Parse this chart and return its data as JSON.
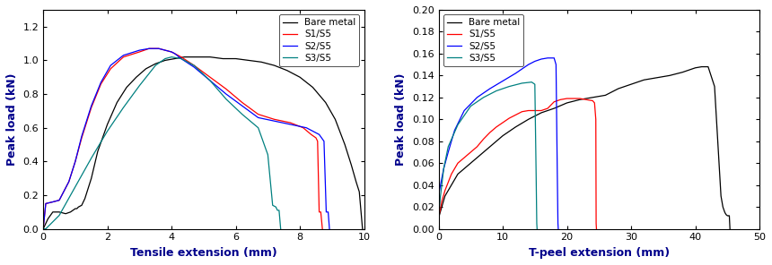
{
  "chart_a": {
    "xlabel": "Tensile extension (mm)",
    "ylabel": "Peak load (kN)",
    "xlim": [
      0,
      10
    ],
    "ylim": [
      0,
      1.3
    ],
    "yticks": [
      0.0,
      0.2,
      0.4,
      0.6,
      0.8,
      1.0,
      1.2
    ],
    "xticks": [
      0,
      2,
      4,
      6,
      8,
      10
    ],
    "label_color": "#00008B",
    "series": [
      {
        "label": "Bare metal",
        "color": "#000000",
        "x": [
          0,
          0.15,
          0.3,
          0.5,
          0.7,
          0.85,
          1.0,
          1.05,
          1.1,
          1.2,
          1.3,
          1.5,
          1.7,
          2.0,
          2.3,
          2.6,
          2.9,
          3.2,
          3.5,
          3.8,
          4.1,
          4.4,
          4.8,
          5.2,
          5.6,
          6.0,
          6.4,
          6.8,
          7.2,
          7.6,
          8.0,
          8.4,
          8.8,
          9.1,
          9.4,
          9.6,
          9.75,
          9.85,
          9.95
        ],
        "y": [
          0,
          0.06,
          0.1,
          0.1,
          0.09,
          0.1,
          0.12,
          0.12,
          0.13,
          0.14,
          0.18,
          0.3,
          0.46,
          0.62,
          0.75,
          0.84,
          0.9,
          0.95,
          0.98,
          1.0,
          1.01,
          1.02,
          1.02,
          1.02,
          1.01,
          1.01,
          1.0,
          0.99,
          0.97,
          0.94,
          0.9,
          0.84,
          0.75,
          0.65,
          0.5,
          0.38,
          0.28,
          0.22,
          0.0
        ]
      },
      {
        "label": "S1/S5",
        "color": "#ff0000",
        "x": [
          0,
          0.08,
          0.3,
          0.5,
          0.8,
          1.0,
          1.2,
          1.5,
          1.8,
          2.1,
          2.5,
          3.0,
          3.3,
          3.6,
          3.8,
          4.0,
          4.3,
          4.7,
          5.2,
          5.7,
          6.2,
          6.7,
          7.2,
          7.7,
          8.1,
          8.35,
          8.5,
          8.55,
          8.6,
          8.65,
          8.7
        ],
        "y": [
          0,
          0.15,
          0.16,
          0.17,
          0.28,
          0.4,
          0.54,
          0.72,
          0.86,
          0.95,
          1.02,
          1.05,
          1.07,
          1.07,
          1.06,
          1.05,
          1.02,
          0.97,
          0.9,
          0.83,
          0.75,
          0.68,
          0.65,
          0.63,
          0.6,
          0.56,
          0.54,
          0.52,
          0.1,
          0.1,
          0.0
        ]
      },
      {
        "label": "S2/S5",
        "color": "#0000ff",
        "x": [
          0,
          0.08,
          0.3,
          0.5,
          0.8,
          1.0,
          1.2,
          1.5,
          1.8,
          2.1,
          2.5,
          3.0,
          3.3,
          3.6,
          3.8,
          4.0,
          4.1,
          4.3,
          4.7,
          5.2,
          5.7,
          6.2,
          6.7,
          7.2,
          7.7,
          8.2,
          8.6,
          8.75,
          8.82,
          8.88,
          8.92
        ],
        "y": [
          0,
          0.15,
          0.16,
          0.17,
          0.28,
          0.4,
          0.55,
          0.73,
          0.87,
          0.97,
          1.03,
          1.06,
          1.07,
          1.07,
          1.06,
          1.05,
          1.04,
          1.01,
          0.96,
          0.88,
          0.8,
          0.73,
          0.66,
          0.64,
          0.62,
          0.6,
          0.56,
          0.52,
          0.1,
          0.1,
          0.0
        ]
      },
      {
        "label": "S3/S5",
        "color": "#008080",
        "x": [
          0,
          0.08,
          0.5,
          1.0,
          1.5,
          2.0,
          2.5,
          3.0,
          3.5,
          3.8,
          4.0,
          4.3,
          4.7,
          5.2,
          5.7,
          6.2,
          6.7,
          7.0,
          7.15,
          7.25,
          7.3,
          7.35,
          7.4
        ],
        "y": [
          0,
          0.0,
          0.08,
          0.25,
          0.42,
          0.58,
          0.72,
          0.85,
          0.97,
          1.01,
          1.02,
          1.01,
          0.97,
          0.88,
          0.77,
          0.68,
          0.6,
          0.44,
          0.14,
          0.13,
          0.11,
          0.11,
          0.0
        ]
      }
    ],
    "legend_loc": "upper right"
  },
  "chart_b": {
    "xlabel": "T-peel extension (mm)",
    "ylabel": "Peak load (kN)",
    "xlim": [
      0,
      50
    ],
    "ylim": [
      0,
      0.2
    ],
    "yticks": [
      0.0,
      0.02,
      0.04,
      0.06,
      0.08,
      0.1,
      0.12,
      0.14,
      0.16,
      0.18,
      0.2
    ],
    "xticks": [
      0,
      10,
      20,
      30,
      40,
      50
    ],
    "label_color": "#00008B",
    "series": [
      {
        "label": "Bare metal",
        "color": "#000000",
        "x": [
          0,
          0.5,
          1,
          2,
          3,
          4,
          5,
          6,
          7,
          8,
          9,
          10,
          12,
          14,
          16,
          18,
          20,
          22,
          24,
          26,
          28,
          30,
          32,
          34,
          36,
          38,
          40,
          41,
          42,
          43,
          43.5,
          44,
          44.3,
          44.6,
          44.8,
          45.0,
          45.2,
          45.3,
          45.4
        ],
        "y": [
          0.01,
          0.02,
          0.03,
          0.04,
          0.05,
          0.055,
          0.06,
          0.065,
          0.07,
          0.075,
          0.08,
          0.085,
          0.093,
          0.1,
          0.106,
          0.11,
          0.115,
          0.118,
          0.12,
          0.122,
          0.128,
          0.132,
          0.136,
          0.138,
          0.14,
          0.143,
          0.147,
          0.148,
          0.148,
          0.13,
          0.08,
          0.03,
          0.02,
          0.015,
          0.013,
          0.012,
          0.012,
          0.012,
          0.0
        ]
      },
      {
        "label": "S1/S5",
        "color": "#ff0000",
        "x": [
          0,
          0.5,
          1,
          2,
          3,
          4,
          5,
          6,
          7,
          8,
          9,
          10,
          11,
          12,
          13,
          14,
          15,
          16,
          17,
          18,
          19,
          20,
          21,
          22,
          23,
          24,
          24.3,
          24.5,
          24.55,
          24.6
        ],
        "y": [
          0.01,
          0.025,
          0.035,
          0.05,
          0.06,
          0.065,
          0.07,
          0.075,
          0.082,
          0.088,
          0.093,
          0.097,
          0.101,
          0.104,
          0.107,
          0.108,
          0.108,
          0.108,
          0.11,
          0.116,
          0.118,
          0.119,
          0.119,
          0.119,
          0.118,
          0.117,
          0.115,
          0.1,
          0.005,
          0.0
        ]
      },
      {
        "label": "S2/S5",
        "color": "#0000ff",
        "x": [
          0,
          0.3,
          0.8,
          1.5,
          2.5,
          4,
          6,
          8,
          10,
          12,
          14,
          15,
          16,
          17,
          18,
          18.3,
          18.5,
          18.6,
          18.65
        ],
        "y": [
          0.03,
          0.04,
          0.055,
          0.07,
          0.09,
          0.108,
          0.12,
          0.128,
          0.135,
          0.142,
          0.15,
          0.153,
          0.155,
          0.156,
          0.156,
          0.15,
          0.05,
          0.005,
          0.0
        ]
      },
      {
        "label": "S3/S5",
        "color": "#008080",
        "x": [
          0,
          0.3,
          0.8,
          1.5,
          3,
          5,
          7,
          9,
          11,
          13,
          14.5,
          15.0,
          15.2,
          15.3,
          15.35
        ],
        "y": [
          0.01,
          0.03,
          0.055,
          0.075,
          0.095,
          0.112,
          0.12,
          0.126,
          0.13,
          0.133,
          0.134,
          0.132,
          0.05,
          0.005,
          0.0
        ]
      }
    ],
    "legend_loc": "upper left"
  }
}
